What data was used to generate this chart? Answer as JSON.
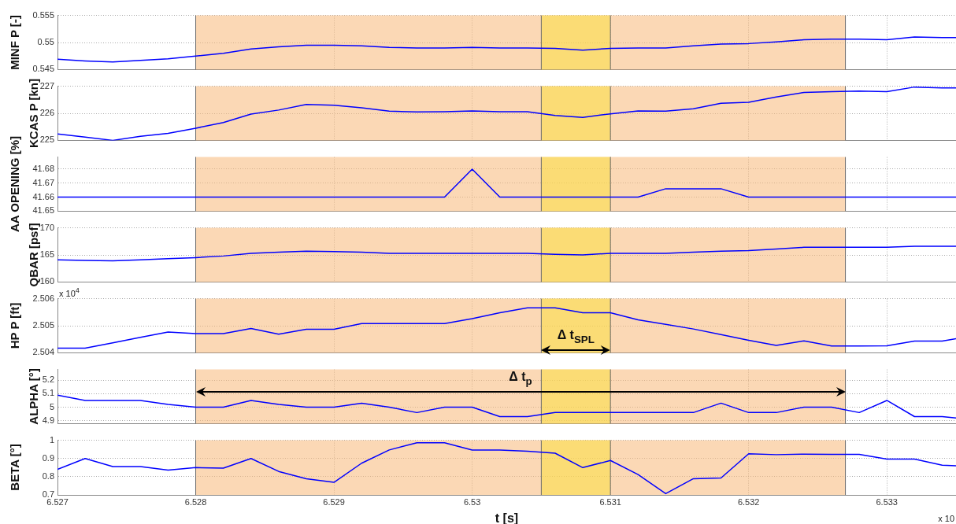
{
  "chart_data": [
    {
      "type": "line",
      "ylabel": "MINF P [-]",
      "x": [
        6.527,
        6.5272,
        6.5274,
        6.5276,
        6.5278,
        6.528,
        6.5282,
        6.5284,
        6.5286,
        6.5288,
        6.529,
        6.5292,
        6.5294,
        6.5296,
        6.5298,
        6.53,
        6.5302,
        6.5304,
        6.5306,
        6.5308,
        6.531,
        6.5312,
        6.5314,
        6.5316,
        6.5318,
        6.532,
        6.5322,
        6.5324,
        6.5326,
        6.5328,
        6.533,
        6.5332,
        6.5334,
        6.5335
      ],
      "color": "#0000ff",
      "values": [
        0.5469,
        0.5466,
        0.5464,
        0.5467,
        0.547,
        0.5475,
        0.548,
        0.5488,
        0.5492,
        0.5495,
        0.5495,
        0.5494,
        0.5491,
        0.549,
        0.549,
        0.5491,
        0.549,
        0.549,
        0.5489,
        0.5486,
        0.5489,
        0.549,
        0.549,
        0.5494,
        0.5497,
        0.5498,
        0.5501,
        0.5505,
        0.5506,
        0.5506,
        0.5505,
        0.551,
        0.5509,
        0.5509
      ],
      "xlim": [
        6.527,
        6.5335
      ],
      "xticks": [
        6.527,
        6.528,
        6.529,
        6.53,
        6.531,
        6.532,
        6.533
      ],
      "ylim": [
        0.545,
        0.555
      ],
      "yticks": [
        0.545,
        0.55,
        0.555
      ],
      "grid": true,
      "tick_labels": "y",
      "bands": [
        {
          "axis": "x",
          "from": 6.528,
          "to": 6.5327,
          "color": "#f8b878"
        },
        {
          "axis": "x",
          "from": 6.5305,
          "to": 6.531,
          "color": "#fce040"
        }
      ]
    },
    {
      "type": "line",
      "ylabel": "KCAS P [kn]",
      "x": [
        6.527,
        6.5272,
        6.5274,
        6.5276,
        6.5278,
        6.528,
        6.5282,
        6.5284,
        6.5286,
        6.5288,
        6.529,
        6.5292,
        6.5294,
        6.5296,
        6.5298,
        6.53,
        6.5302,
        6.5304,
        6.5306,
        6.5308,
        6.531,
        6.5312,
        6.5314,
        6.5316,
        6.5318,
        6.532,
        6.5322,
        6.5324,
        6.5326,
        6.5328,
        6.533,
        6.5332,
        6.5334,
        6.5335
      ],
      "color": "#0000ff",
      "values": [
        225.24,
        225.12,
        225.0,
        225.15,
        225.26,
        225.45,
        225.66,
        225.97,
        226.12,
        226.33,
        226.3,
        226.2,
        226.08,
        226.05,
        226.06,
        226.09,
        226.06,
        226.06,
        225.92,
        225.85,
        225.98,
        226.09,
        226.08,
        226.17,
        226.37,
        226.41,
        226.6,
        226.77,
        226.8,
        226.82,
        226.8,
        226.97,
        226.94,
        226.94
      ],
      "xlim": [
        6.527,
        6.5335
      ],
      "xticks": [
        6.527,
        6.528,
        6.529,
        6.53,
        6.531,
        6.532,
        6.533
      ],
      "ylim": [
        225,
        227
      ],
      "yticks": [
        225,
        226,
        227
      ],
      "grid": true,
      "tick_labels": "y",
      "bands": [
        {
          "axis": "x",
          "from": 6.528,
          "to": 6.5327,
          "color": "#f8b878"
        },
        {
          "axis": "x",
          "from": 6.5305,
          "to": 6.531,
          "color": "#fce040"
        }
      ]
    },
    {
      "type": "line",
      "ylabel": "AA OPENING [%]",
      "x": [
        6.527,
        6.5272,
        6.5274,
        6.5276,
        6.5278,
        6.528,
        6.5282,
        6.5284,
        6.5286,
        6.5288,
        6.529,
        6.5292,
        6.5294,
        6.5296,
        6.5298,
        6.53,
        6.5302,
        6.5304,
        6.5306,
        6.5308,
        6.531,
        6.5312,
        6.5314,
        6.5316,
        6.5318,
        6.532,
        6.5322,
        6.5324,
        6.5326,
        6.5328,
        6.533,
        6.5332,
        6.5334,
        6.5335
      ],
      "color": "#0000ff",
      "values": [
        41.66,
        41.66,
        41.66,
        41.66,
        41.66,
        41.66,
        41.66,
        41.66,
        41.66,
        41.66,
        41.66,
        41.66,
        41.66,
        41.66,
        41.66,
        41.68,
        41.66,
        41.66,
        41.66,
        41.66,
        41.66,
        41.66,
        41.666,
        41.666,
        41.666,
        41.66,
        41.66,
        41.66,
        41.66,
        41.66,
        41.66,
        41.66,
        41.66,
        41.66
      ],
      "xlim": [
        6.527,
        6.5335
      ],
      "xticks": [
        6.527,
        6.528,
        6.529,
        6.53,
        6.531,
        6.532,
        6.533
      ],
      "ylim": [
        41.65,
        41.6886
      ],
      "yticks": [
        41.65,
        41.66,
        41.67,
        41.68
      ],
      "grid": true,
      "tick_labels": "y",
      "bands": [
        {
          "axis": "x",
          "from": 6.528,
          "to": 6.5327,
          "color": "#f8b878"
        },
        {
          "axis": "x",
          "from": 6.5305,
          "to": 6.531,
          "color": "#fce040"
        }
      ]
    },
    {
      "type": "line",
      "ylabel": "QBAR [psf]",
      "x": [
        6.527,
        6.5272,
        6.5274,
        6.5276,
        6.5278,
        6.528,
        6.5282,
        6.5284,
        6.5286,
        6.5288,
        6.529,
        6.5292,
        6.5294,
        6.5296,
        6.5298,
        6.53,
        6.5302,
        6.5304,
        6.5306,
        6.5308,
        6.531,
        6.5312,
        6.5314,
        6.5316,
        6.5318,
        6.532,
        6.5322,
        6.5324,
        6.5326,
        6.5328,
        6.533,
        6.5332,
        6.5334,
        6.5335
      ],
      "color": "#0000ff",
      "values": [
        164.1,
        164.0,
        163.9,
        164.1,
        164.3,
        164.5,
        164.8,
        165.3,
        165.5,
        165.7,
        165.6,
        165.5,
        165.3,
        165.3,
        165.3,
        165.3,
        165.3,
        165.3,
        165.1,
        165.0,
        165.3,
        165.3,
        165.3,
        165.5,
        165.7,
        165.8,
        166.1,
        166.4,
        166.4,
        166.4,
        166.4,
        166.6,
        166.6,
        166.6
      ],
      "xlim": [
        6.527,
        6.5335
      ],
      "xticks": [
        6.527,
        6.528,
        6.529,
        6.53,
        6.531,
        6.532,
        6.533
      ],
      "ylim": [
        160,
        170
      ],
      "yticks": [
        160,
        165,
        170
      ],
      "grid": true,
      "tick_labels": "y",
      "bands": [
        {
          "axis": "x",
          "from": 6.528,
          "to": 6.5327,
          "color": "#f8b878"
        },
        {
          "axis": "x",
          "from": 6.5305,
          "to": 6.531,
          "color": "#fce040"
        }
      ]
    },
    {
      "type": "line",
      "ylabel": "HP P [ft]",
      "x": [
        6.527,
        6.5272,
        6.5274,
        6.5276,
        6.5278,
        6.528,
        6.5282,
        6.5284,
        6.5286,
        6.5288,
        6.529,
        6.5292,
        6.5294,
        6.5296,
        6.5298,
        6.53,
        6.5302,
        6.5304,
        6.5306,
        6.5308,
        6.531,
        6.5312,
        6.5314,
        6.5316,
        6.5318,
        6.532,
        6.5322,
        6.5324,
        6.5326,
        6.5328,
        6.533,
        6.5332,
        6.5334,
        6.5335
      ],
      "color": "#0000ff",
      "values": [
        2.50417,
        2.50417,
        2.50437,
        2.50457,
        2.50477,
        2.50471,
        2.50471,
        2.5049,
        2.50469,
        2.50487,
        2.50487,
        2.50508,
        2.50508,
        2.50508,
        2.50508,
        2.50526,
        2.50548,
        2.50566,
        2.50566,
        2.50548,
        2.50548,
        2.50522,
        2.50505,
        2.50488,
        2.50467,
        2.50446,
        2.50427,
        2.50444,
        2.50425,
        2.50425,
        2.50426,
        2.50443,
        2.50443,
        2.50452
      ],
      "xlim": [
        6.527,
        6.5335
      ],
      "xticks": [
        6.527,
        6.528,
        6.529,
        6.53,
        6.531,
        6.532,
        6.533
      ],
      "ylim": [
        2.504,
        2.506
      ],
      "yticks": [
        2.504,
        2.505,
        2.506
      ],
      "grid": true,
      "tick_labels": "y",
      "bands": [
        {
          "axis": "x",
          "from": 6.528,
          "to": 6.5327,
          "color": "#f8b878"
        },
        {
          "axis": "x",
          "from": 6.5305,
          "to": 6.531,
          "color": "#fce040",
          "label": "Δ t$_{SPL}$"
        }
      ],
      "annotations": [
        "x 10$^{4}$"
      ]
    },
    {
      "type": "line",
      "ylabel": "ALPHA [°]",
      "x": [
        6.527,
        6.5272,
        6.5274,
        6.5276,
        6.5278,
        6.528,
        6.5282,
        6.5284,
        6.5286,
        6.5288,
        6.529,
        6.5292,
        6.5294,
        6.5296,
        6.5298,
        6.53,
        6.5302,
        6.5304,
        6.5306,
        6.5308,
        6.531,
        6.5312,
        6.5314,
        6.5316,
        6.5318,
        6.532,
        6.5322,
        6.5324,
        6.5326,
        6.5328,
        6.533,
        6.5332,
        6.5334,
        6.5335
      ],
      "color": "#0000ff",
      "values": [
        5.09,
        5.05,
        5.05,
        5.05,
        5.02,
        5.0,
        5.0,
        5.05,
        5.02,
        5.0,
        5.0,
        5.03,
        5.0,
        4.96,
        5.0,
        5.0,
        4.93,
        4.93,
        4.96,
        4.96,
        4.96,
        4.96,
        4.96,
        4.96,
        5.03,
        4.96,
        4.96,
        5.0,
        5.0,
        4.96,
        5.05,
        4.93,
        4.93,
        4.92
      ],
      "xlim": [
        6.527,
        6.5335
      ],
      "xticks": [
        6.527,
        6.528,
        6.529,
        6.53,
        6.531,
        6.532,
        6.533
      ],
      "ylim": [
        4.878,
        5.28
      ],
      "yticks": [
        4.9,
        5,
        5.1,
        5.2
      ],
      "grid": true,
      "tick_labels": "y",
      "bands": [
        {
          "axis": "x",
          "from": 6.528,
          "to": 6.5327,
          "color": "#f8b878",
          "label": "Δ t$_{p}$"
        },
        {
          "axis": "x",
          "from": 6.5305,
          "to": 6.531,
          "color": "#fce040"
        }
      ]
    },
    {
      "type": "line",
      "ylabel": "BETA [°]",
      "xlabel": "t [s]",
      "x": [
        6.527,
        6.5272,
        6.5274,
        6.5276,
        6.5278,
        6.528,
        6.5282,
        6.5284,
        6.5286,
        6.5288,
        6.529,
        6.5292,
        6.5294,
        6.5296,
        6.5298,
        6.53,
        6.5302,
        6.5304,
        6.5306,
        6.5308,
        6.531,
        6.5312,
        6.5314,
        6.5316,
        6.5318,
        6.532,
        6.5322,
        6.5324,
        6.5326,
        6.5328,
        6.533,
        6.5332,
        6.5334,
        6.5335
      ],
      "color": "#0000ff",
      "values": [
        0.84,
        0.9,
        0.856,
        0.856,
        0.836,
        0.85,
        0.847,
        0.9,
        0.829,
        0.789,
        0.769,
        0.874,
        0.947,
        0.986,
        0.986,
        0.946,
        0.946,
        0.94,
        0.929,
        0.85,
        0.889,
        0.812,
        0.707,
        0.789,
        0.793,
        0.926,
        0.921,
        0.924,
        0.923,
        0.923,
        0.897,
        0.897,
        0.863,
        0.86
      ],
      "xlim": [
        6.527,
        6.5335
      ],
      "xticks": [
        6.527,
        6.528,
        6.529,
        6.53,
        6.531,
        6.532,
        6.533
      ],
      "ylim": [
        0.7,
        1
      ],
      "yticks": [
        0.7,
        0.8,
        0.9,
        1
      ],
      "grid": true,
      "bands": [
        {
          "axis": "x",
          "from": 6.528,
          "to": 6.5327,
          "color": "#f8b878"
        },
        {
          "axis": "x",
          "from": 6.5305,
          "to": 6.531,
          "color": "#fce040"
        }
      ],
      "annotations": [
        "x 10"
      ]
    }
  ]
}
